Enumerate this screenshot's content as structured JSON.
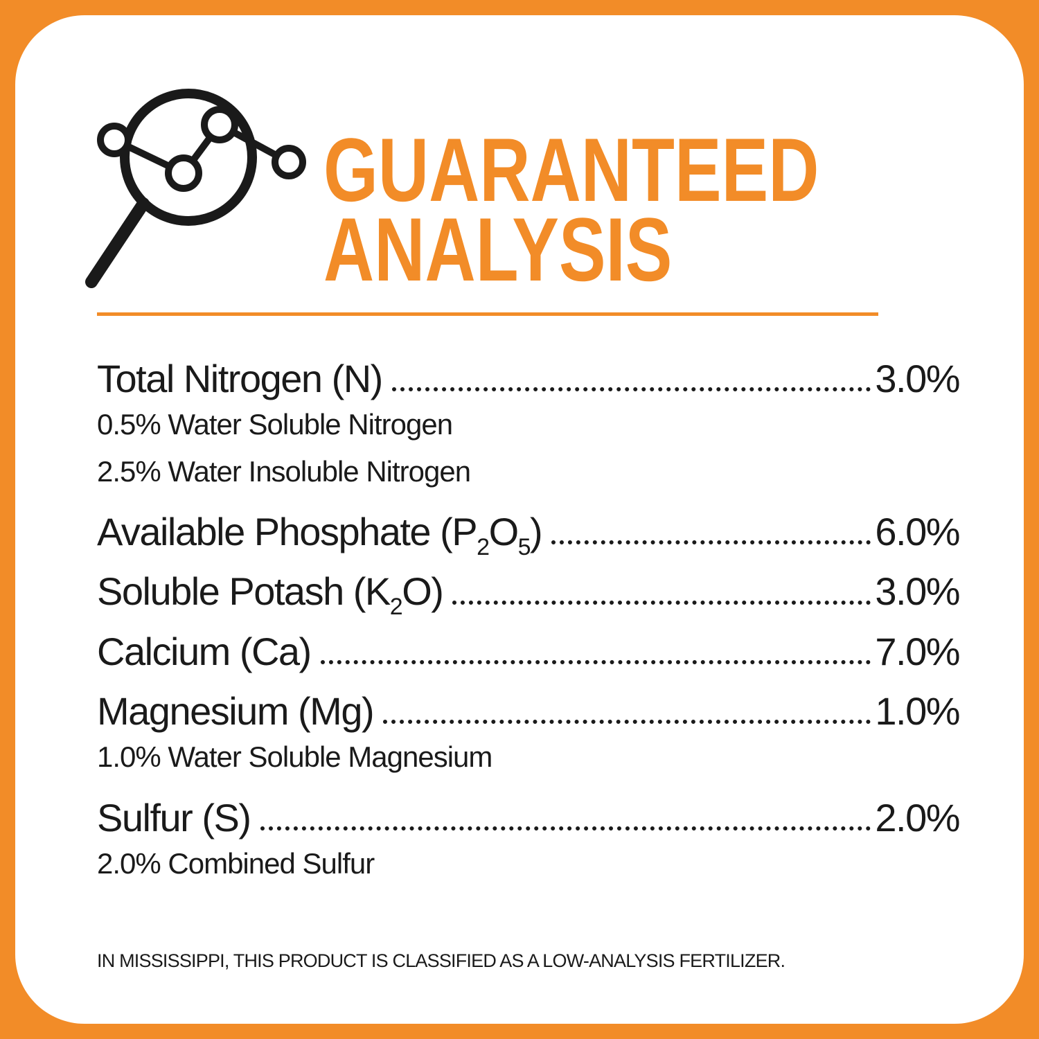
{
  "header": {
    "title_lines": [
      "GUARANTEED",
      "ANALYSIS"
    ]
  },
  "rows": [
    {
      "name": [
        {
          "text": "Total Nitrogen (N)"
        }
      ],
      "value": "3.0%",
      "details": [
        "0.5% Water Soluble Nitrogen",
        "2.5% Water Insoluble Nitrogen"
      ]
    },
    {
      "name": [
        {
          "text": "Available Phosphate (P"
        },
        {
          "text": "2",
          "sub": true
        },
        {
          "text": "O"
        },
        {
          "text": "5",
          "sub": true
        },
        {
          "text": ")"
        }
      ],
      "value": "6.0%",
      "details": []
    },
    {
      "name": [
        {
          "text": "Soluble Potash (K"
        },
        {
          "text": "2",
          "sub": true
        },
        {
          "text": "O)"
        }
      ],
      "value": "3.0%",
      "details": []
    },
    {
      "name": [
        {
          "text": "Calcium (Ca)"
        }
      ],
      "value": "7.0%",
      "details": []
    },
    {
      "name": [
        {
          "text": "Magnesium (Mg)"
        }
      ],
      "value": "1.0%",
      "details": [
        "1.0% Water Soluble Magnesium"
      ]
    },
    {
      "name": [
        {
          "text": "Sulfur (S)"
        }
      ],
      "value": "2.0%",
      "details": [
        "2.0% Combined Sulfur"
      ]
    }
  ],
  "footer": "IN MISSISSIPPI, THIS PRODUCT IS CLASSIFIED AS A LOW-ANALYSIS FERTILIZER."
}
